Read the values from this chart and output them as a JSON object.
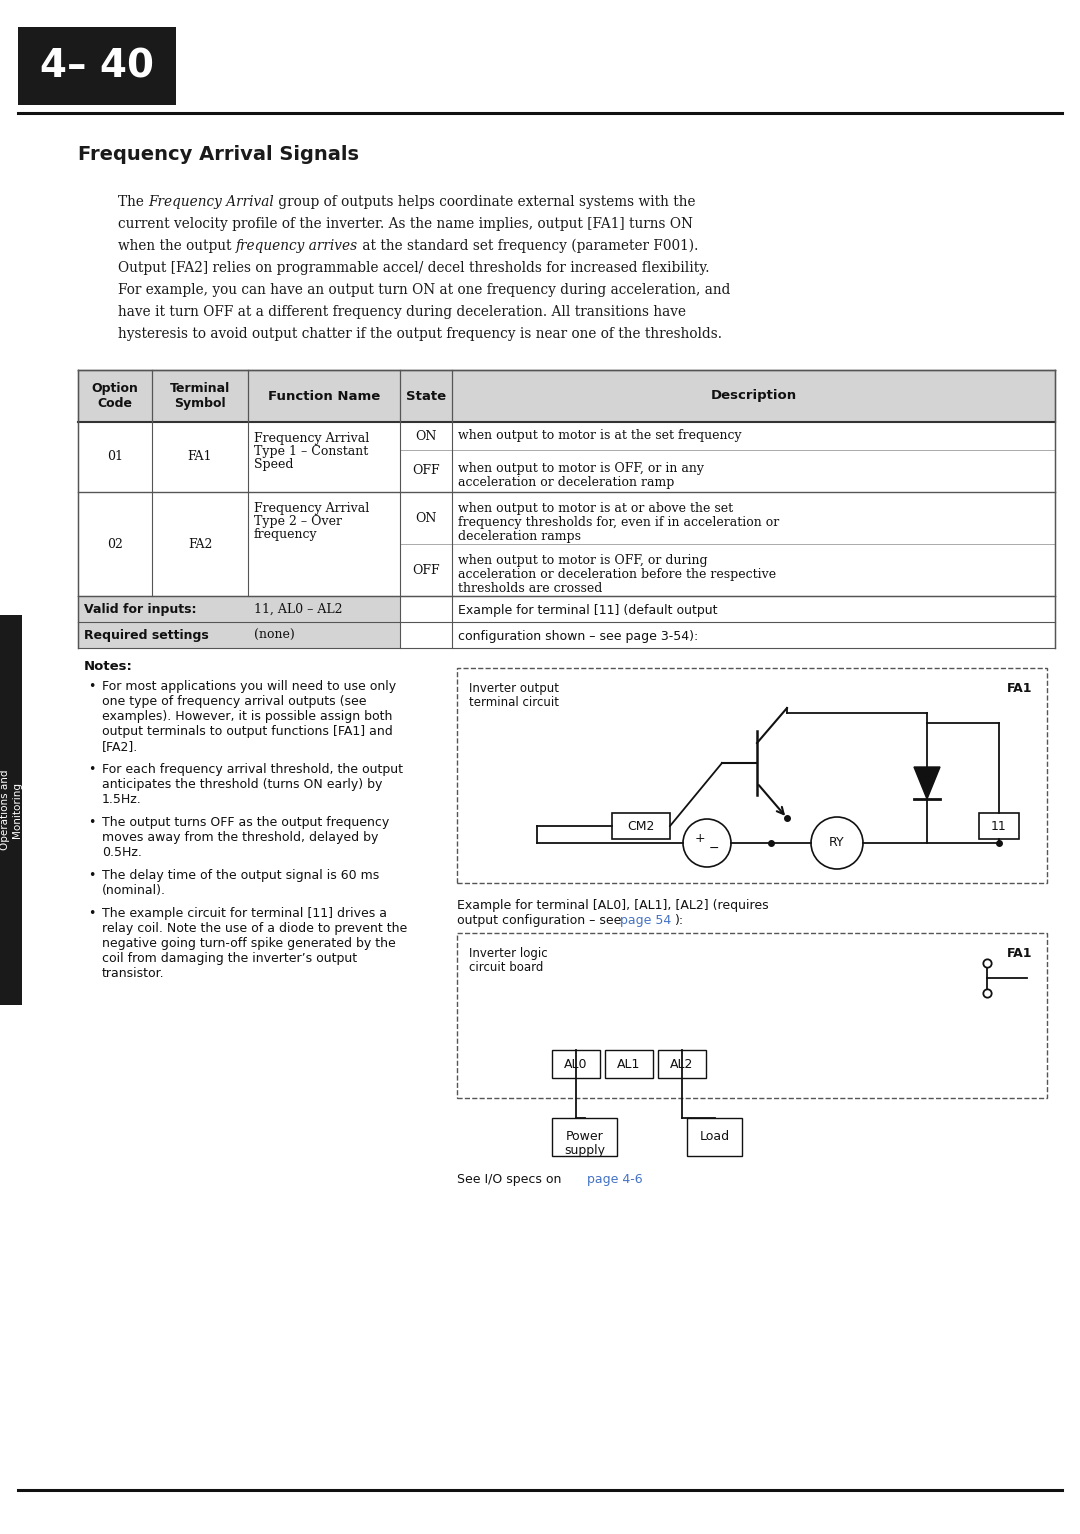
{
  "page_number": "4– 40",
  "section_title": "Frequency Arrival Signals",
  "bg_color": "#ffffff",
  "header_bg": "#1a1a1a",
  "header_text_color": "#ffffff",
  "sidebar_bg": "#1a1a1a",
  "sidebar_text": "Operations and\nMonitoring",
  "table_header_bg": "#d4d4d4",
  "valid_inputs": "11, AL0 – AL2",
  "required_settings": "(none)",
  "link_color": "#4472c4"
}
